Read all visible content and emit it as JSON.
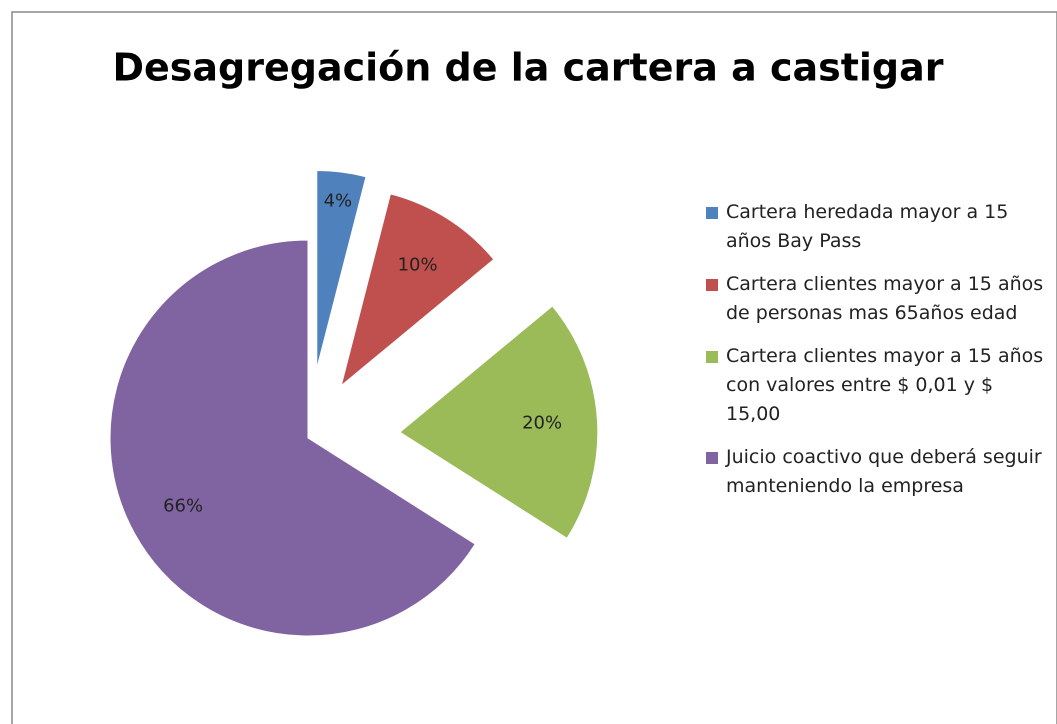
{
  "chart_data": {
    "type": "pie",
    "title": "Desagregación de la cartera a castigar",
    "categories": [
      "Cartera heredada mayor a 15 años Bay Pass",
      "Cartera clientes mayor a  15 años de personas mas 65años edad",
      "Cartera clientes mayor a  15 años con valores entre $ 0,01 y $ 15,00",
      "Juicio coactivo  que deberá seguir  manteniendo la empresa"
    ],
    "values": [
      4,
      10,
      20,
      66
    ],
    "value_labels": [
      "4%",
      "10%",
      "20%",
      "66%"
    ],
    "colors": [
      "#4f81bd",
      "#c0504d",
      "#9bbb59",
      "#8064a2"
    ],
    "legend": "right"
  }
}
